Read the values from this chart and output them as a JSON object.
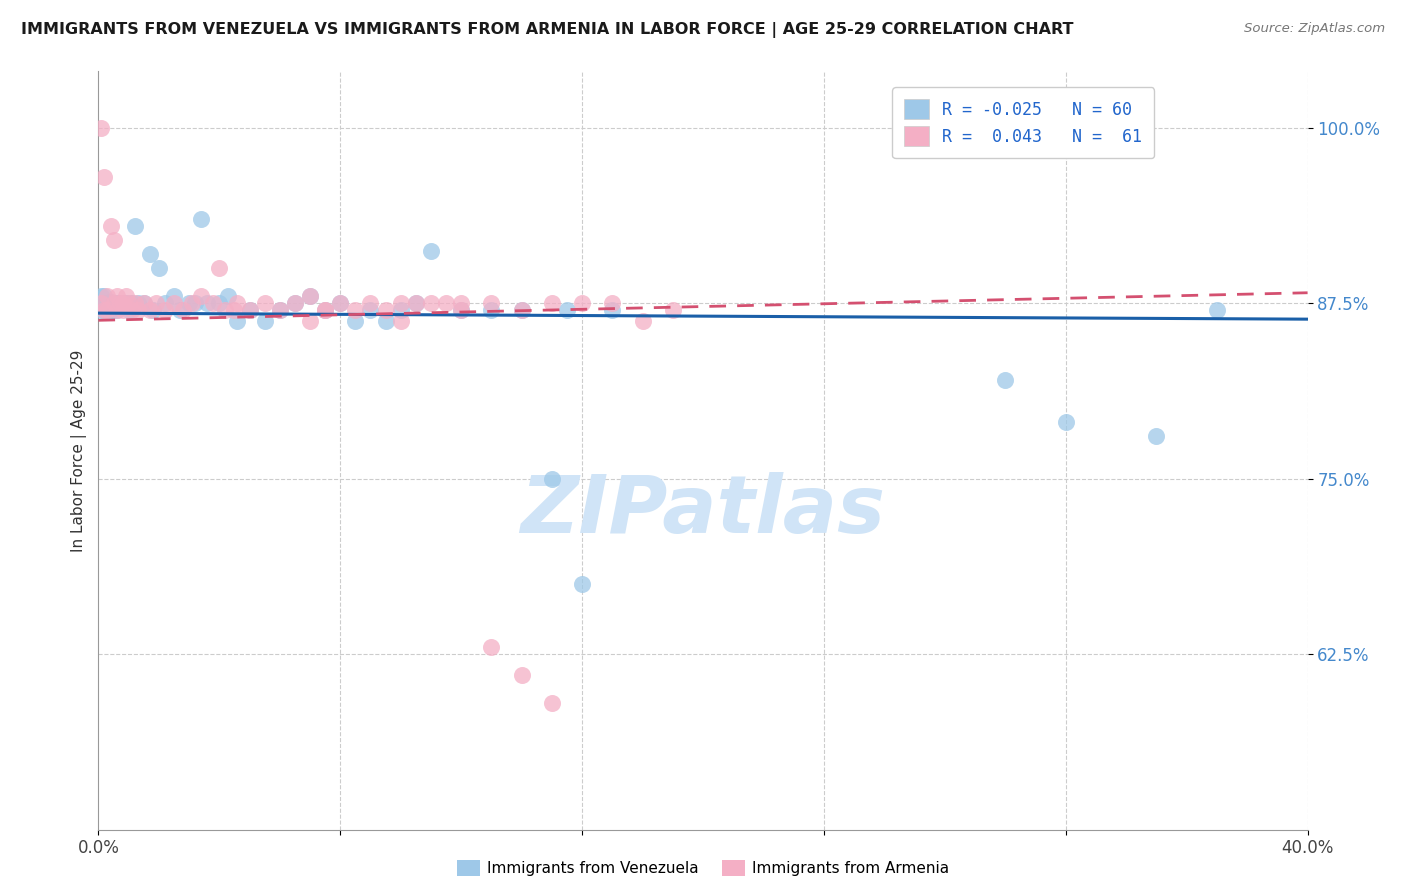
{
  "title": "IMMIGRANTS FROM VENEZUELA VS IMMIGRANTS FROM ARMENIA IN LABOR FORCE | AGE 25-29 CORRELATION CHART",
  "source": "Source: ZipAtlas.com",
  "ylabel": "In Labor Force | Age 25-29",
  "xlim": [
    0.0,
    0.4
  ],
  "ylim": [
    0.5,
    1.04
  ],
  "yticks": [
    0.625,
    0.75,
    0.875,
    1.0
  ],
  "ytick_labels": [
    "62.5%",
    "75.0%",
    "87.5%",
    "100.0%"
  ],
  "xticks": [
    0.0,
    0.08,
    0.16,
    0.24,
    0.32,
    0.4
  ],
  "xtick_labels": [
    "0.0%",
    "",
    "",
    "",
    "",
    "40.0%"
  ],
  "blue_color": "#9ec8e8",
  "pink_color": "#f4afc5",
  "blue_line_color": "#1a5fa8",
  "pink_line_color": "#d45070",
  "watermark": "ZIPatlas",
  "watermark_color": "#d0e4f7",
  "r_blue": -0.025,
  "r_pink": 0.043,
  "n_blue": 60,
  "n_pink": 61,
  "blue_x": [
    0.001,
    0.001,
    0.001,
    0.002,
    0.002,
    0.002,
    0.003,
    0.003,
    0.004,
    0.004,
    0.005,
    0.005,
    0.006,
    0.006,
    0.007,
    0.008,
    0.009,
    0.01,
    0.01,
    0.011,
    0.012,
    0.013,
    0.015,
    0.017,
    0.018,
    0.02,
    0.022,
    0.025,
    0.027,
    0.03,
    0.032,
    0.034,
    0.036,
    0.04,
    0.043,
    0.046,
    0.05,
    0.055,
    0.06,
    0.065,
    0.07,
    0.075,
    0.08,
    0.085,
    0.09,
    0.095,
    0.1,
    0.105,
    0.11,
    0.12,
    0.13,
    0.14,
    0.15,
    0.155,
    0.16,
    0.17,
    0.3,
    0.32,
    0.35,
    0.37
  ],
  "blue_y": [
    0.88,
    0.875,
    0.87,
    0.88,
    0.875,
    0.87,
    0.875,
    0.87,
    0.876,
    0.87,
    0.875,
    0.87,
    0.875,
    0.87,
    0.875,
    0.875,
    0.875,
    0.875,
    0.87,
    0.875,
    0.93,
    0.875,
    0.875,
    0.91,
    0.87,
    0.9,
    0.875,
    0.88,
    0.87,
    0.875,
    0.875,
    0.935,
    0.875,
    0.875,
    0.88,
    0.862,
    0.87,
    0.862,
    0.87,
    0.875,
    0.88,
    0.87,
    0.875,
    0.862,
    0.87,
    0.862,
    0.87,
    0.875,
    0.912,
    0.87,
    0.87,
    0.87,
    0.75,
    0.87,
    0.675,
    0.87,
    0.82,
    0.79,
    0.78,
    0.87
  ],
  "pink_x": [
    0.001,
    0.001,
    0.002,
    0.002,
    0.003,
    0.003,
    0.004,
    0.005,
    0.005,
    0.006,
    0.006,
    0.007,
    0.008,
    0.008,
    0.009,
    0.01,
    0.011,
    0.012,
    0.013,
    0.015,
    0.017,
    0.019,
    0.022,
    0.025,
    0.028,
    0.031,
    0.034,
    0.038,
    0.042,
    0.046,
    0.05,
    0.055,
    0.06,
    0.065,
    0.07,
    0.075,
    0.08,
    0.085,
    0.09,
    0.095,
    0.1,
    0.105,
    0.11,
    0.115,
    0.12,
    0.13,
    0.14,
    0.15,
    0.16,
    0.17,
    0.18,
    0.19,
    0.04,
    0.045,
    0.07,
    0.075,
    0.1,
    0.12,
    0.13,
    0.14,
    0.15
  ],
  "pink_y": [
    1.0,
    0.875,
    0.965,
    0.87,
    0.88,
    0.87,
    0.93,
    0.92,
    0.875,
    0.88,
    0.87,
    0.875,
    0.87,
    0.875,
    0.88,
    0.875,
    0.87,
    0.875,
    0.87,
    0.875,
    0.87,
    0.875,
    0.87,
    0.875,
    0.87,
    0.875,
    0.88,
    0.875,
    0.87,
    0.875,
    0.87,
    0.875,
    0.87,
    0.875,
    0.88,
    0.87,
    0.875,
    0.87,
    0.875,
    0.87,
    0.875,
    0.875,
    0.875,
    0.875,
    0.875,
    0.875,
    0.87,
    0.875,
    0.875,
    0.875,
    0.862,
    0.87,
    0.9,
    0.87,
    0.862,
    0.87,
    0.862,
    0.87,
    0.63,
    0.61,
    0.59
  ]
}
